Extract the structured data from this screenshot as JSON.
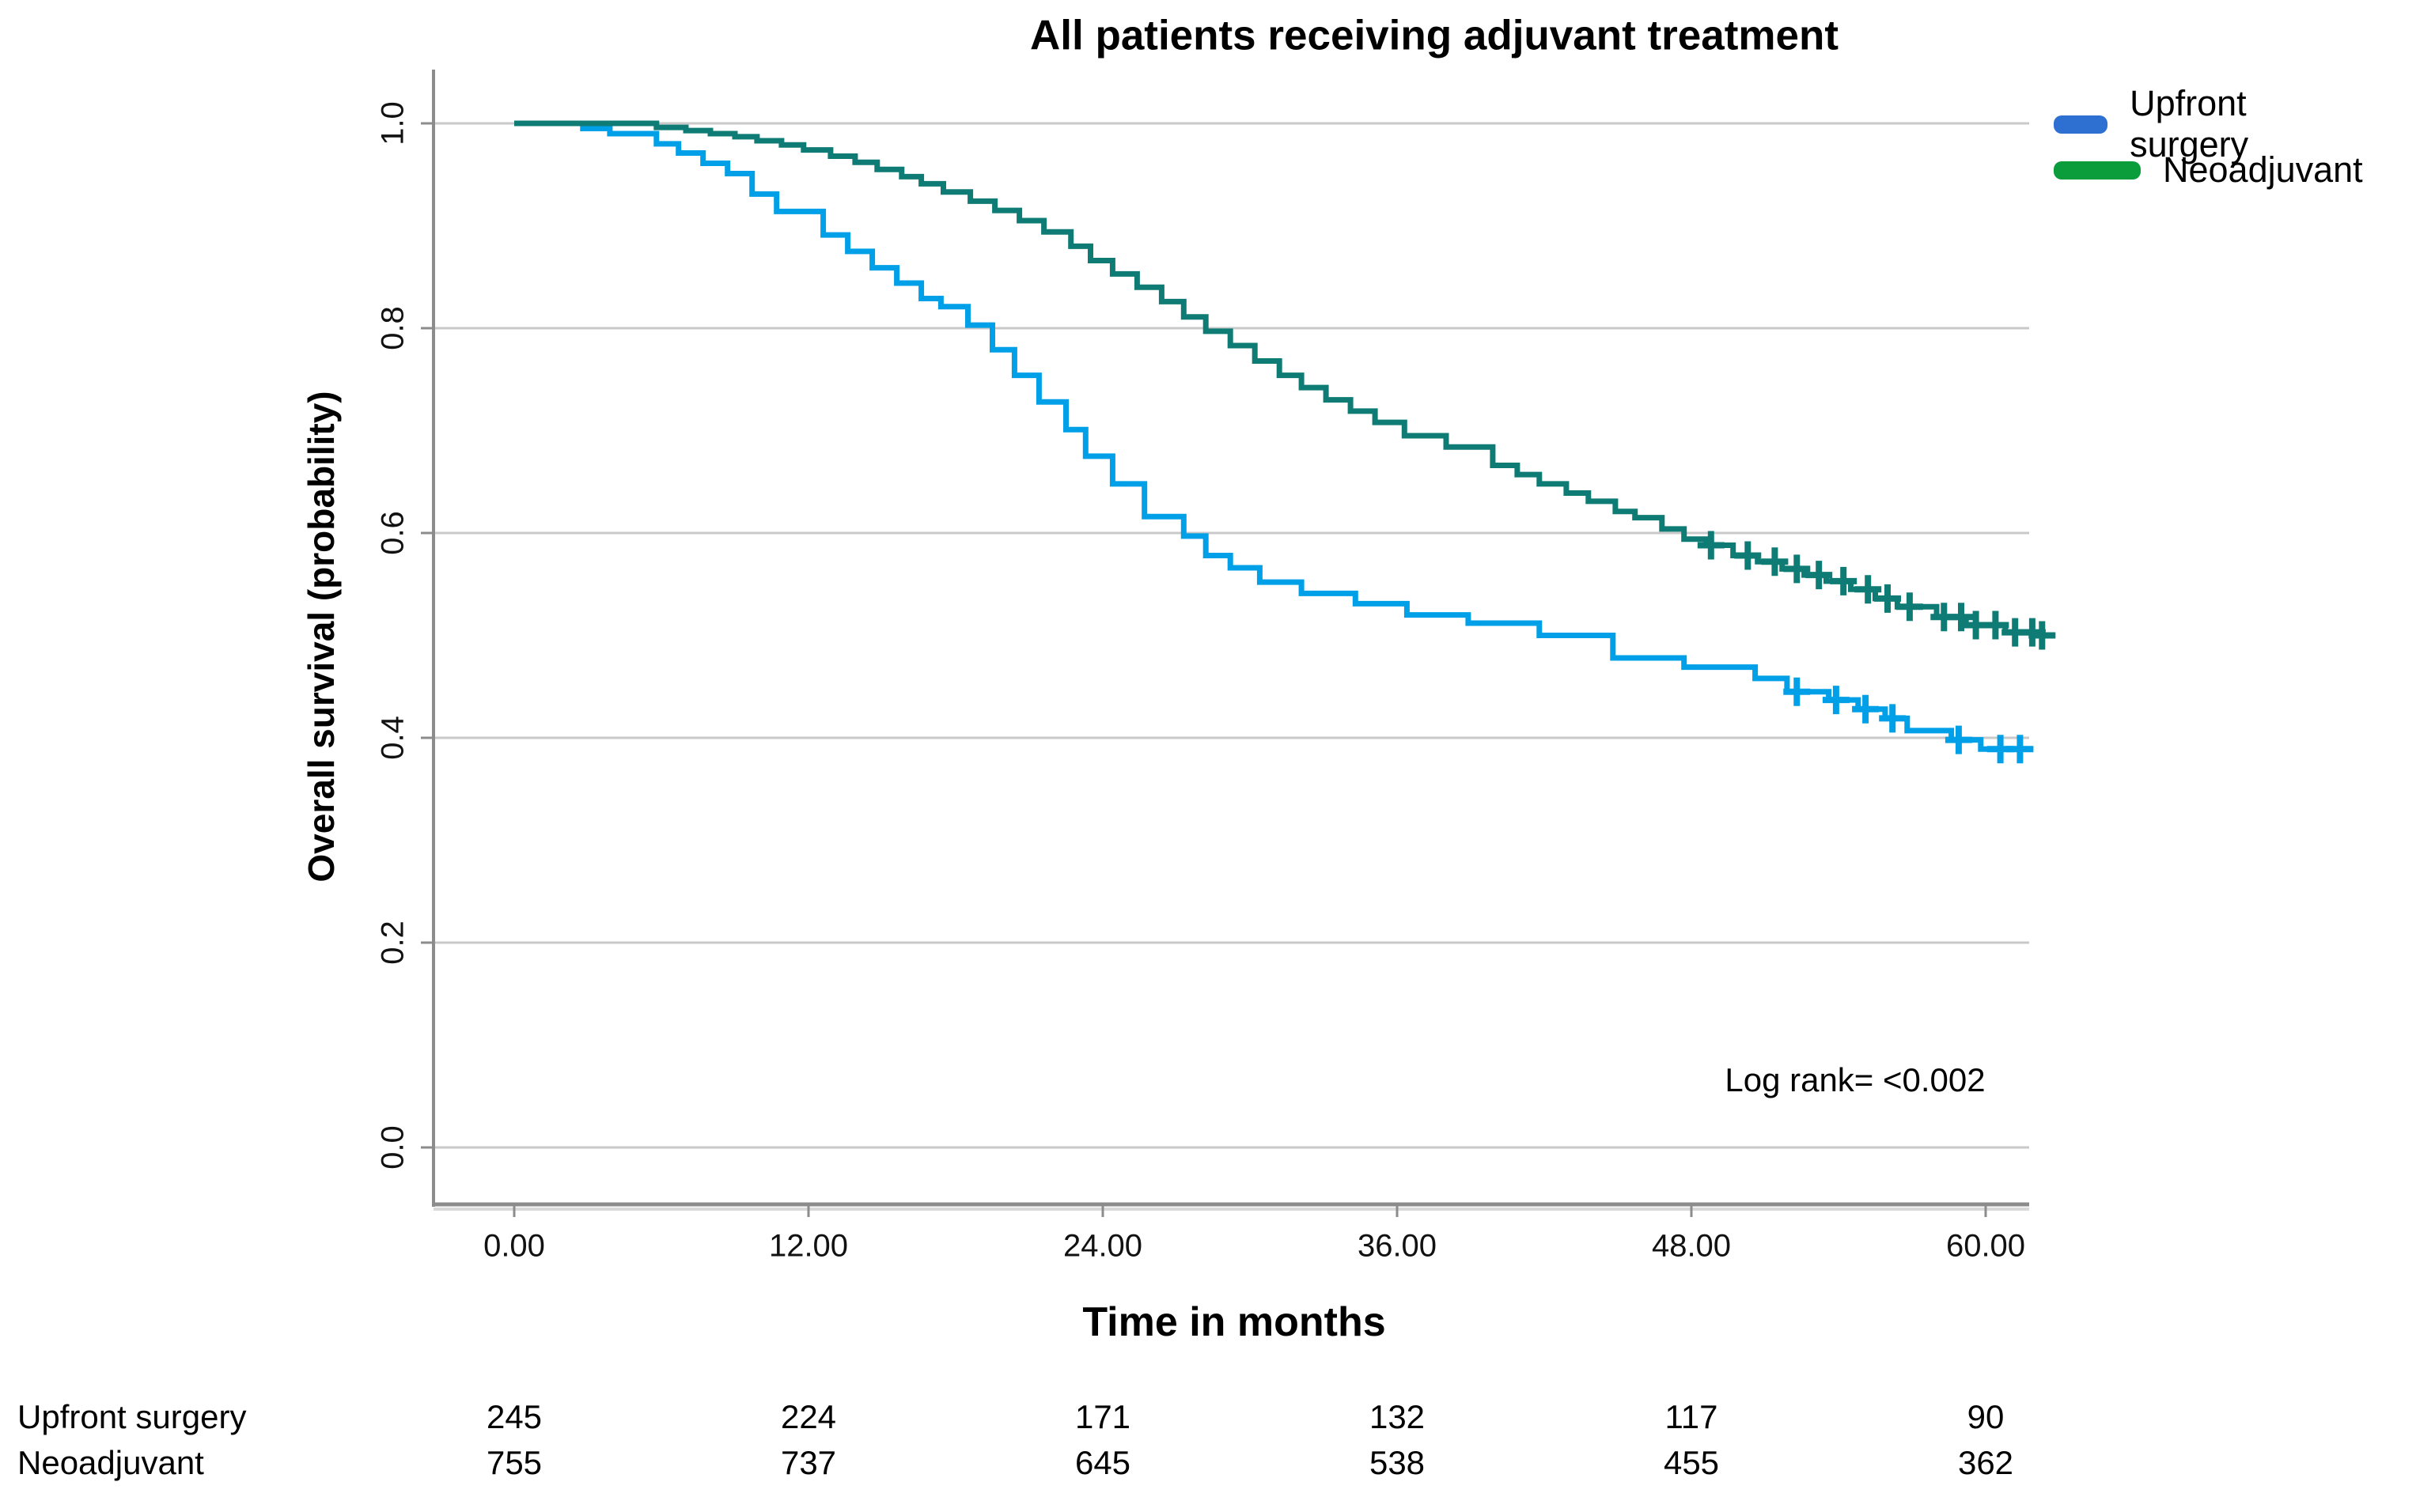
{
  "title": "All patients receiving adjuvant treatment",
  "axes": {
    "y_title": "Overall survival (probability)",
    "x_title": "Time in months",
    "y_ticks": [
      "1.0",
      "0.8",
      "0.6",
      "0.4",
      "0.2",
      "0.0"
    ],
    "x_ticks": [
      "0.00",
      "12.00",
      "24.00",
      "36.00",
      "48.00",
      "60.00"
    ]
  },
  "annotation": "Log rank= <0.002",
  "legend": [
    {
      "label": "Upfront surgery",
      "color": "#2e6fd2"
    },
    {
      "label": "Neoadjuvant",
      "color": "#0b9d3c"
    }
  ],
  "risk_table": {
    "rows": [
      {
        "label": "Upfront surgery",
        "counts": [
          "245",
          "224",
          "171",
          "132",
          "117",
          "90"
        ]
      },
      {
        "label": "Neoadjuvant",
        "counts": [
          "755",
          "737",
          "645",
          "538",
          "455",
          "362"
        ]
      }
    ]
  },
  "chart_data": {
    "type": "line",
    "subtype": "kaplan-meier-step",
    "title": "All patients receiving adjuvant treatment",
    "xlabel": "Time in months",
    "ylabel": "Overall survival (probability)",
    "xlim": [
      0,
      63
    ],
    "ylim": [
      0,
      1.05
    ],
    "x_tick_values": [
      0,
      12,
      24,
      36,
      48,
      60
    ],
    "y_tick_values": [
      1.0,
      0.8,
      0.6,
      0.4,
      0.2,
      0.0
    ],
    "grid": "horizontal",
    "gridline_color": "#c9c9c9",
    "axis_color": "#8c8c8c",
    "legend_position": "top-right",
    "annotation": "Log rank= <0.002",
    "series": [
      {
        "name": "Upfront surgery",
        "line_color": "#00a0e8",
        "legend_color": "#2e6fd2",
        "at_risk": [
          245,
          224,
          171,
          132,
          117,
          90
        ],
        "end_t": 61.8,
        "steps": [
          [
            0,
            1.0
          ],
          [
            2.8,
            0.995
          ],
          [
            3.9,
            0.99
          ],
          [
            5.8,
            0.98
          ],
          [
            6.7,
            0.971
          ],
          [
            7.7,
            0.961
          ],
          [
            8.7,
            0.951
          ],
          [
            9.7,
            0.931
          ],
          [
            10.7,
            0.914
          ],
          [
            12.6,
            0.891
          ],
          [
            13.6,
            0.875
          ],
          [
            14.6,
            0.859
          ],
          [
            15.6,
            0.844
          ],
          [
            16.6,
            0.829
          ],
          [
            17.4,
            0.821
          ],
          [
            18.5,
            0.803
          ],
          [
            19.5,
            0.779
          ],
          [
            20.4,
            0.754
          ],
          [
            21.4,
            0.728
          ],
          [
            22.5,
            0.701
          ],
          [
            23.3,
            0.675
          ],
          [
            24.4,
            0.648
          ],
          [
            25.7,
            0.616
          ],
          [
            27.3,
            0.597
          ],
          [
            28.2,
            0.578
          ],
          [
            29.2,
            0.566
          ],
          [
            30.4,
            0.552
          ],
          [
            32.1,
            0.541
          ],
          [
            34.3,
            0.531
          ],
          [
            36.4,
            0.52
          ],
          [
            38.9,
            0.512
          ],
          [
            41.8,
            0.5
          ],
          [
            44.8,
            0.478
          ],
          [
            47.7,
            0.469
          ],
          [
            50.6,
            0.458
          ],
          [
            51.9,
            0.445
          ],
          [
            53.6,
            0.437
          ],
          [
            54.8,
            0.428
          ],
          [
            55.9,
            0.419
          ],
          [
            56.8,
            0.407
          ],
          [
            58.6,
            0.398
          ],
          [
            59.8,
            0.389
          ]
        ],
        "censors": [
          [
            52.3,
            0.445
          ],
          [
            53.9,
            0.437
          ],
          [
            55.1,
            0.428
          ],
          [
            56.2,
            0.419
          ],
          [
            58.9,
            0.398
          ],
          [
            60.6,
            0.389
          ],
          [
            61.4,
            0.389
          ]
        ]
      },
      {
        "name": "Neoadjuvant",
        "line_color": "#0e7c74",
        "legend_color": "#0b9d3c",
        "at_risk": [
          755,
          737,
          645,
          538,
          455,
          362
        ],
        "end_t": 62.4,
        "steps": [
          [
            0,
            1.0
          ],
          [
            5.8,
            0.996
          ],
          [
            7.0,
            0.993
          ],
          [
            8.0,
            0.99
          ],
          [
            9.0,
            0.987
          ],
          [
            9.9,
            0.983
          ],
          [
            10.9,
            0.979
          ],
          [
            11.8,
            0.974
          ],
          [
            12.9,
            0.968
          ],
          [
            13.9,
            0.962
          ],
          [
            14.8,
            0.955
          ],
          [
            15.8,
            0.948
          ],
          [
            16.6,
            0.941
          ],
          [
            17.5,
            0.933
          ],
          [
            18.6,
            0.924
          ],
          [
            19.6,
            0.915
          ],
          [
            20.6,
            0.905
          ],
          [
            21.6,
            0.894
          ],
          [
            22.7,
            0.88
          ],
          [
            23.5,
            0.866
          ],
          [
            24.4,
            0.853
          ],
          [
            25.4,
            0.84
          ],
          [
            26.4,
            0.826
          ],
          [
            27.3,
            0.811
          ],
          [
            28.2,
            0.797
          ],
          [
            29.2,
            0.783
          ],
          [
            30.2,
            0.768
          ],
          [
            31.2,
            0.754
          ],
          [
            32.1,
            0.742
          ],
          [
            33.1,
            0.73
          ],
          [
            34.1,
            0.719
          ],
          [
            35.1,
            0.708
          ],
          [
            36.3,
            0.695
          ],
          [
            38.0,
            0.684
          ],
          [
            39.9,
            0.666
          ],
          [
            40.9,
            0.657
          ],
          [
            41.8,
            0.648
          ],
          [
            42.9,
            0.639
          ],
          [
            43.8,
            0.631
          ],
          [
            44.9,
            0.621
          ],
          [
            45.7,
            0.615
          ],
          [
            46.8,
            0.604
          ],
          [
            47.7,
            0.594
          ],
          [
            48.6,
            0.588
          ],
          [
            49.7,
            0.578
          ],
          [
            50.7,
            0.572
          ],
          [
            51.7,
            0.565
          ],
          [
            52.6,
            0.559
          ],
          [
            53.5,
            0.553
          ],
          [
            54.5,
            0.545
          ],
          [
            55.5,
            0.536
          ],
          [
            56.4,
            0.528
          ],
          [
            58.0,
            0.518
          ],
          [
            59.2,
            0.51
          ],
          [
            60.8,
            0.503
          ],
          [
            62.0,
            0.5
          ]
        ],
        "censors": [
          [
            48.8,
            0.588
          ],
          [
            50.3,
            0.578
          ],
          [
            51.4,
            0.572
          ],
          [
            52.3,
            0.565
          ],
          [
            53.2,
            0.559
          ],
          [
            54.2,
            0.553
          ],
          [
            55.2,
            0.545
          ],
          [
            56.0,
            0.536
          ],
          [
            56.9,
            0.528
          ],
          [
            58.3,
            0.518
          ],
          [
            59.0,
            0.518
          ],
          [
            59.6,
            0.51
          ],
          [
            60.4,
            0.51
          ],
          [
            61.2,
            0.503
          ],
          [
            61.9,
            0.503
          ],
          [
            62.3,
            0.5
          ]
        ]
      }
    ]
  }
}
